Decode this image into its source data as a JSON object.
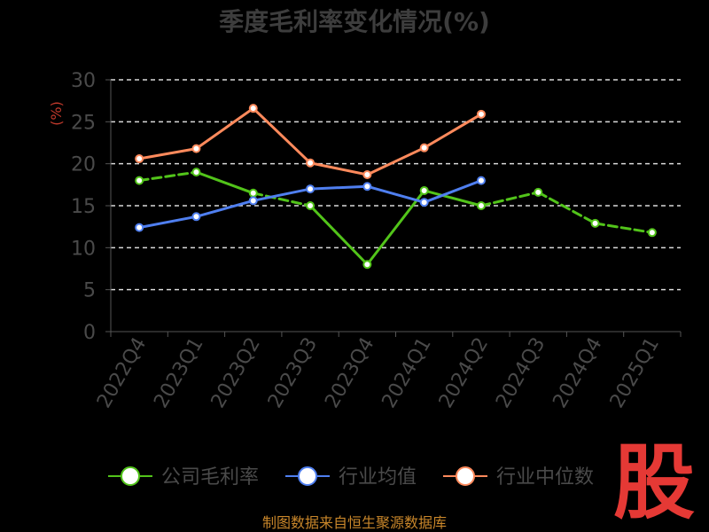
{
  "chart_data": {
    "type": "line",
    "title": "季度毛利率变化情况(%)",
    "ylabel": "(%)",
    "xlabel": "",
    "ylim": [
      0,
      30
    ],
    "yticks": [
      0,
      5,
      10,
      15,
      20,
      25,
      30
    ],
    "grid": true,
    "legend_position": "bottom",
    "categories": [
      "2022Q4",
      "2023Q1",
      "2023Q2",
      "2023Q3",
      "2023Q4",
      "2024Q1",
      "2024Q2",
      "2024Q3",
      "2024Q4",
      "2025Q1"
    ],
    "series": [
      {
        "name": "公司毛利率",
        "color": "#52c41a",
        "dashed_segments": true,
        "values": [
          18.0,
          19.0,
          16.5,
          15.0,
          8.0,
          16.8,
          15.0,
          16.6,
          12.9,
          11.8
        ]
      },
      {
        "name": "行业均值",
        "color": "#4f7ff0",
        "values": [
          12.4,
          13.7,
          15.6,
          17.0,
          17.3,
          15.4,
          18.0,
          null,
          null,
          null
        ]
      },
      {
        "name": "行业中位数",
        "color": "#ff8a5c",
        "values": [
          20.6,
          21.8,
          26.6,
          20.1,
          18.7,
          21.9,
          25.9,
          null,
          null,
          null
        ]
      }
    ]
  },
  "footer": {
    "source": "制图数据来自恒生聚源数据库"
  },
  "logo": {
    "text": "股"
  }
}
